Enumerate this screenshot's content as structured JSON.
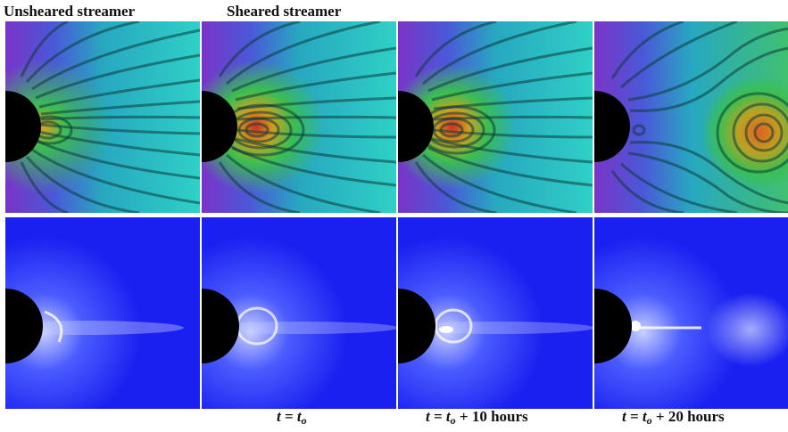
{
  "column_titles": [
    "Unsheared streamer",
    "Sheared streamer"
  ],
  "time_labels": [
    {
      "var": "t",
      "eq": " = ",
      "base": "t",
      "sub": "o",
      "suffix": ""
    },
    {
      "var": "t",
      "eq": " = ",
      "base": "t",
      "sub": "o",
      "suffix": " + 10 hours"
    },
    {
      "var": "t",
      "eq": " = ",
      "base": "t",
      "sub": "o",
      "suffix": " + 20 hours"
    }
  ],
  "rows": [
    {
      "name": "magnetic-field-simulation-row",
      "panels": 4
    },
    {
      "name": "white-light-brightness-row",
      "panels": 4
    }
  ]
}
